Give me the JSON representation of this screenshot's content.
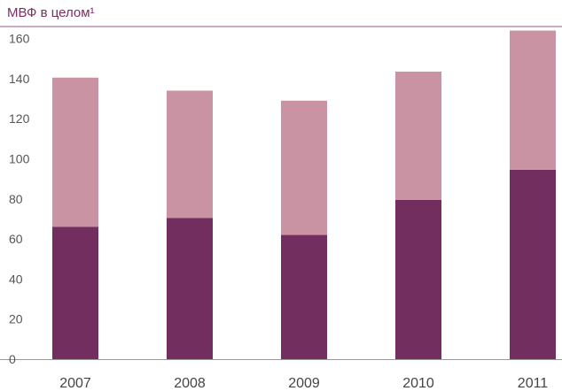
{
  "chart_data": {
    "type": "bar",
    "stacked": true,
    "title": "МВФ в целом¹",
    "xlabel": "",
    "ylabel": "",
    "categories": [
      "2007",
      "2008",
      "2009",
      "2010",
      "2011"
    ],
    "series": [
      {
        "name": "",
        "color": "#722e5f",
        "values": [
          66,
          70.5,
          62,
          79.5,
          94.5
        ]
      },
      {
        "name": "",
        "color": "#c993a4",
        "values": [
          74.5,
          63.5,
          67,
          64,
          69.5
        ]
      }
    ],
    "ylim": [
      0,
      166
    ],
    "yticks": [
      0,
      20,
      40,
      60,
      80,
      100,
      120,
      140,
      160
    ],
    "grid": false,
    "legend": "none",
    "colors": {
      "title": "#7a2e63",
      "rule": "#b07a98",
      "baseline": "#999999"
    }
  }
}
